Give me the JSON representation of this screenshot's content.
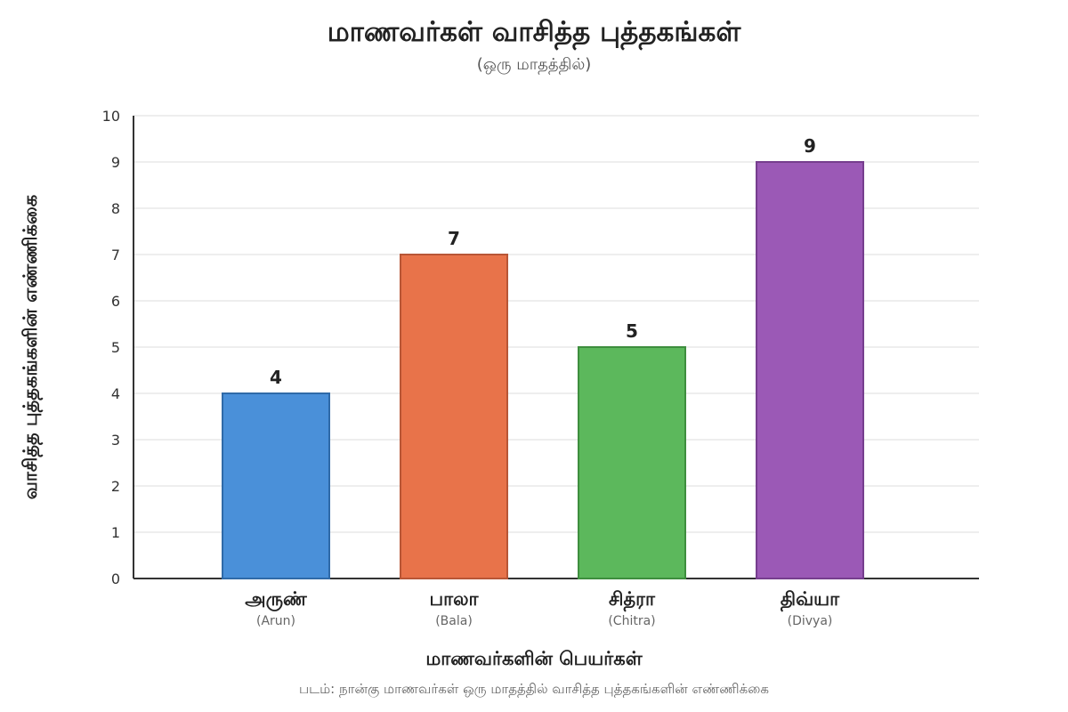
{
  "chart_data": {
    "type": "bar",
    "title": "மாணவர்கள் வாசித்த புத்தகங்கள்",
    "subtitle": "(ஒரு மாதத்தில்)",
    "xlabel": "மாணவர்களின் பெயர்கள்",
    "ylabel": "வாசித்த புத்தகங்களின் எண்ணிக்கை",
    "caption": "படம்: நான்கு மாணவர்கள் ஒரு மாதத்தில் வாசித்த புத்தகங்களின் எண்ணிக்கை",
    "categories": [
      "அருண்",
      "பாலா",
      "சித்ரா",
      "திவ்யா"
    ],
    "category_sublabels": [
      "(Arun)",
      "(Bala)",
      "(Chitra)",
      "(Divya)"
    ],
    "values": [
      4,
      7,
      5,
      9
    ],
    "data_labels": [
      "4",
      "7",
      "5",
      "9"
    ],
    "colors": [
      "#4a90d9",
      "#e8734a",
      "#5cb85c",
      "#9b59b6"
    ],
    "border_colors": [
      "#2f6aa8",
      "#b85636",
      "#3e8e3e",
      "#763e8e"
    ],
    "ylim": [
      0,
      10
    ],
    "yticks": [
      "0",
      "1",
      "2",
      "3",
      "4",
      "5",
      "6",
      "7",
      "8",
      "9",
      "10"
    ],
    "grid": true,
    "legend": "none"
  }
}
